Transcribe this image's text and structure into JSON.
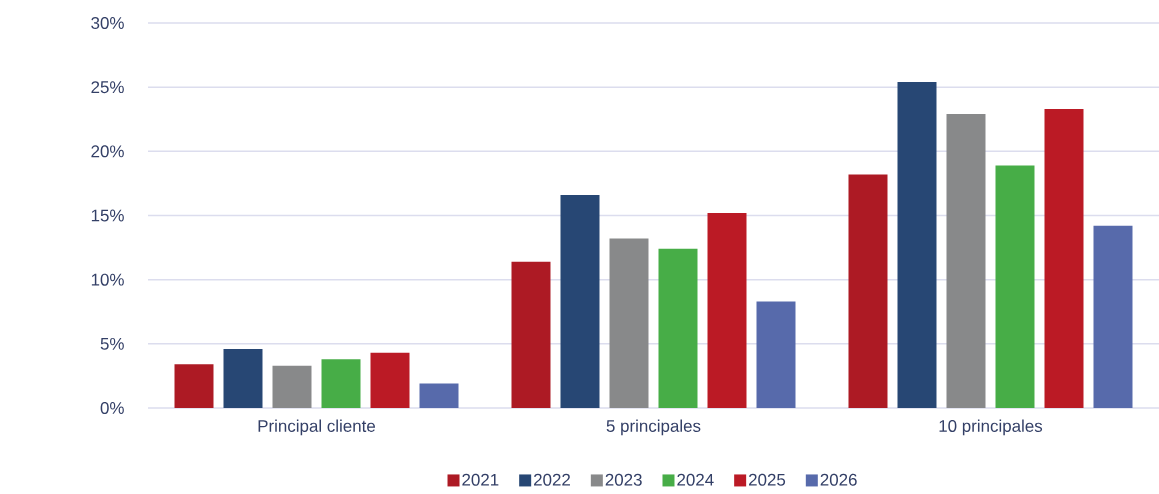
{
  "chart_data": {
    "type": "bar",
    "categories": [
      "Principal cliente",
      "5 principales",
      "10 principales"
    ],
    "series": [
      {
        "name": "2021",
        "color": "#ad1a24",
        "values": [
          3.4,
          11.4,
          18.2
        ]
      },
      {
        "name": "2022",
        "color": "#274774",
        "values": [
          4.6,
          16.6,
          25.4
        ]
      },
      {
        "name": "2023",
        "color": "#88898a",
        "values": [
          3.3,
          13.2,
          22.9
        ]
      },
      {
        "name": "2024",
        "color": "#47ad47",
        "values": [
          3.8,
          12.4,
          18.9
        ]
      },
      {
        "name": "2025",
        "color": "#bb1a25",
        "values": [
          4.3,
          15.2,
          23.3
        ]
      },
      {
        "name": "2026",
        "color": "#576aab",
        "values": [
          1.9,
          8.3,
          14.2
        ]
      }
    ],
    "ylim": [
      0,
      30
    ],
    "yticks": [
      {
        "value": 0,
        "label": "0%"
      },
      {
        "value": 5,
        "label": "5%"
      },
      {
        "value": 10,
        "label": "10%"
      },
      {
        "value": 15,
        "label": "15%"
      },
      {
        "value": 20,
        "label": "20%"
      },
      {
        "value": 25,
        "label": "25%"
      },
      {
        "value": 30,
        "label": "30%"
      }
    ],
    "grid": "y",
    "legend": "bottom"
  }
}
